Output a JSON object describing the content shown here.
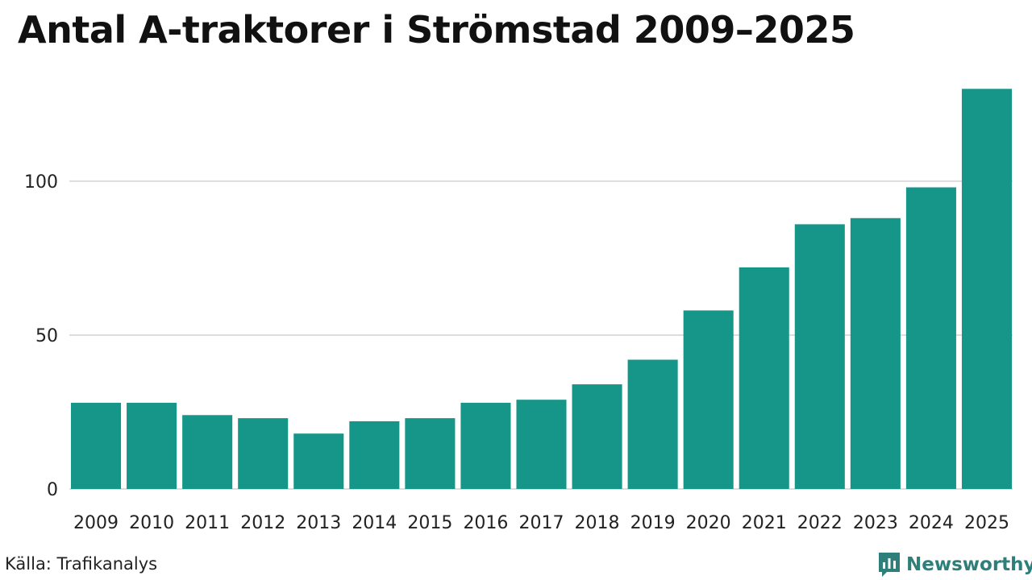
{
  "title": "Antal A-traktorer i Strömstad 2009–2025",
  "source": "Källa: Trafikanalys",
  "brand": "Newsworthy",
  "colors": {
    "bar": "#159688",
    "grid": "#dddddd",
    "brand": "#2e7f7a"
  },
  "chart_data": {
    "type": "bar",
    "title": "Antal A-traktorer i Strömstad 2009–2025",
    "xlabel": "",
    "ylabel": "",
    "categories": [
      "2009",
      "2010",
      "2011",
      "2012",
      "2013",
      "2014",
      "2015",
      "2016",
      "2017",
      "2018",
      "2019",
      "2020",
      "2021",
      "2022",
      "2023",
      "2024",
      "2025"
    ],
    "values": [
      28,
      28,
      24,
      23,
      18,
      22,
      23,
      28,
      29,
      34,
      42,
      58,
      72,
      86,
      88,
      98,
      130
    ],
    "yticks": [
      0,
      50,
      100
    ],
    "ylim": [
      0,
      134
    ],
    "grid": true
  }
}
